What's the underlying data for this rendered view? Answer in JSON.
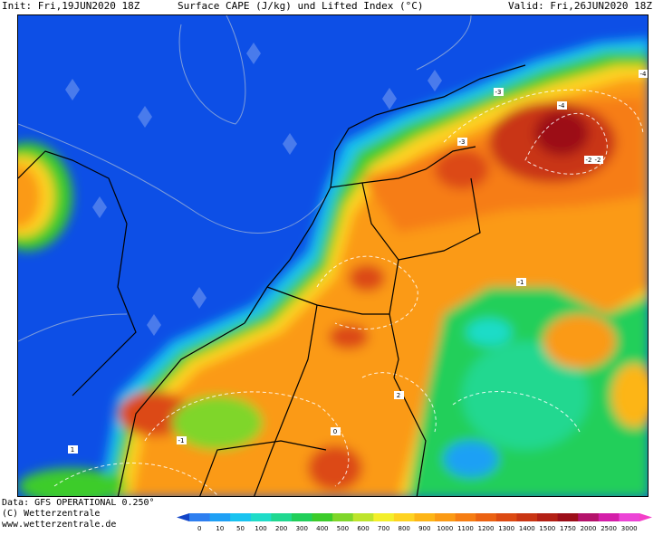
{
  "header": {
    "init": "Init: Fri,19JUN2020 18Z",
    "title": "Surface CAPE (J/kg) und Lifted Index (°C)",
    "valid": "Valid: Fri,26JUN2020 18Z"
  },
  "footer": {
    "data_source": "Data: GFS OPERATIONAL 0.250°",
    "copyright": "(C) Wetterzentrale",
    "website": "www.wetterzentrale.de"
  },
  "legend": {
    "values": [
      "0",
      "10",
      "50",
      "100",
      "200",
      "300",
      "400",
      "500",
      "600",
      "700",
      "800",
      "900",
      "1000",
      "1100",
      "1200",
      "1300",
      "1400",
      "1500",
      "1750",
      "2000",
      "2500",
      "3000"
    ],
    "colors": [
      "#2e7ff0",
      "#1fa0f5",
      "#19c3f0",
      "#1fdcc8",
      "#20d890",
      "#21cf5a",
      "#3ccc2b",
      "#7fd62a",
      "#bde42c",
      "#f3ef2a",
      "#fed321",
      "#fdb516",
      "#fb9a14",
      "#f67d13",
      "#eb6212",
      "#dc4a12",
      "#c93513",
      "#b32015",
      "#9c0e19",
      "#b4126b",
      "#d41ea9",
      "#ec44d6"
    ],
    "low_cap_color": "#1245c8",
    "high_cap_color": "#f33fc8"
  },
  "map": {
    "sea_color": "#0d4fe6",
    "lifted_index_labels": [
      "-4",
      "-4",
      "-3",
      "-3",
      "-2",
      "-2",
      "-1",
      "-1",
      "0",
      "1",
      "2"
    ]
  }
}
